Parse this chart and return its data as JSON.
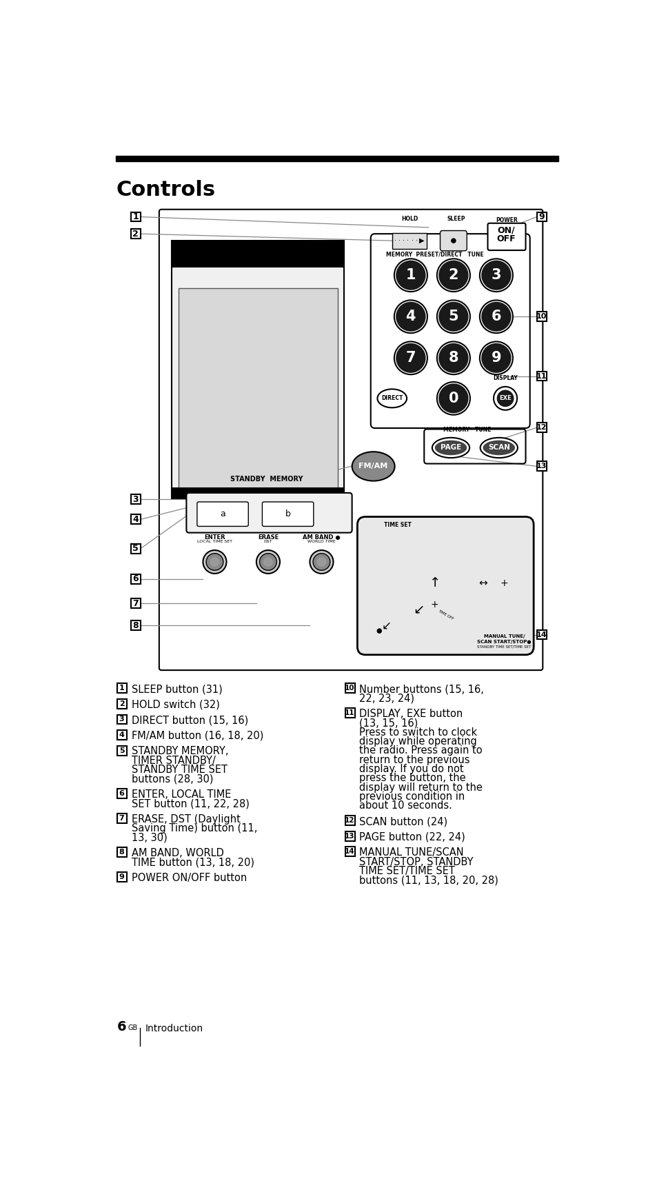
{
  "title": "Controls",
  "bg_color": "#ffffff",
  "title_color": "#000000",
  "title_fontsize": 22,
  "header_bar_color": "#000000",
  "page_label": "6",
  "page_superscript": "GB",
  "page_section": "Introduction",
  "left_items": [
    {
      "num": "1",
      "text": "SLEEP button (31)"
    },
    {
      "num": "2",
      "text": "HOLD switch (32)"
    },
    {
      "num": "3",
      "text": "DIRECT button (15, 16)"
    },
    {
      "num": "4",
      "text": "FM/AM button (16, 18, 20)"
    },
    {
      "num": "5",
      "text": "STANDBY MEMORY,\nTIMER STANDBY/\nSTANDBY TIME SET\nbuttons (28, 30)"
    },
    {
      "num": "6",
      "text": "ENTER, LOCAL TIME\nSET button (11, 22, 28)"
    },
    {
      "num": "7",
      "text": "ERASE, DST (Daylight\nSaving Time) button (11,\n13, 30)"
    },
    {
      "num": "8",
      "text": "AM BAND, WORLD\nTIME button (13, 18, 20)"
    },
    {
      "num": "9",
      "text": "POWER ON/OFF button"
    }
  ],
  "right_items": [
    {
      "num": "10",
      "text": "Number buttons (15, 16,\n22, 23, 24)"
    },
    {
      "num": "11",
      "text": "DISPLAY, EXE button\n(13, 15, 16)\nPress to switch to clock\ndisplay while operating\nthe radio. Press again to\nreturn to the previous\ndisplay. If you do not\npress the button, the\ndisplay will return to the\nprevious condition in\nabout 10 seconds."
    },
    {
      "num": "12",
      "text": "SCAN button (24)"
    },
    {
      "num": "13",
      "text": "PAGE button (22, 24)"
    },
    {
      "num": "14",
      "text": "MANUAL TUNE/SCAN\nSTART/STOP, STANDBY\nTIME SET/TIME SET\nbuttons (11, 13, 18, 20, 28)"
    }
  ]
}
